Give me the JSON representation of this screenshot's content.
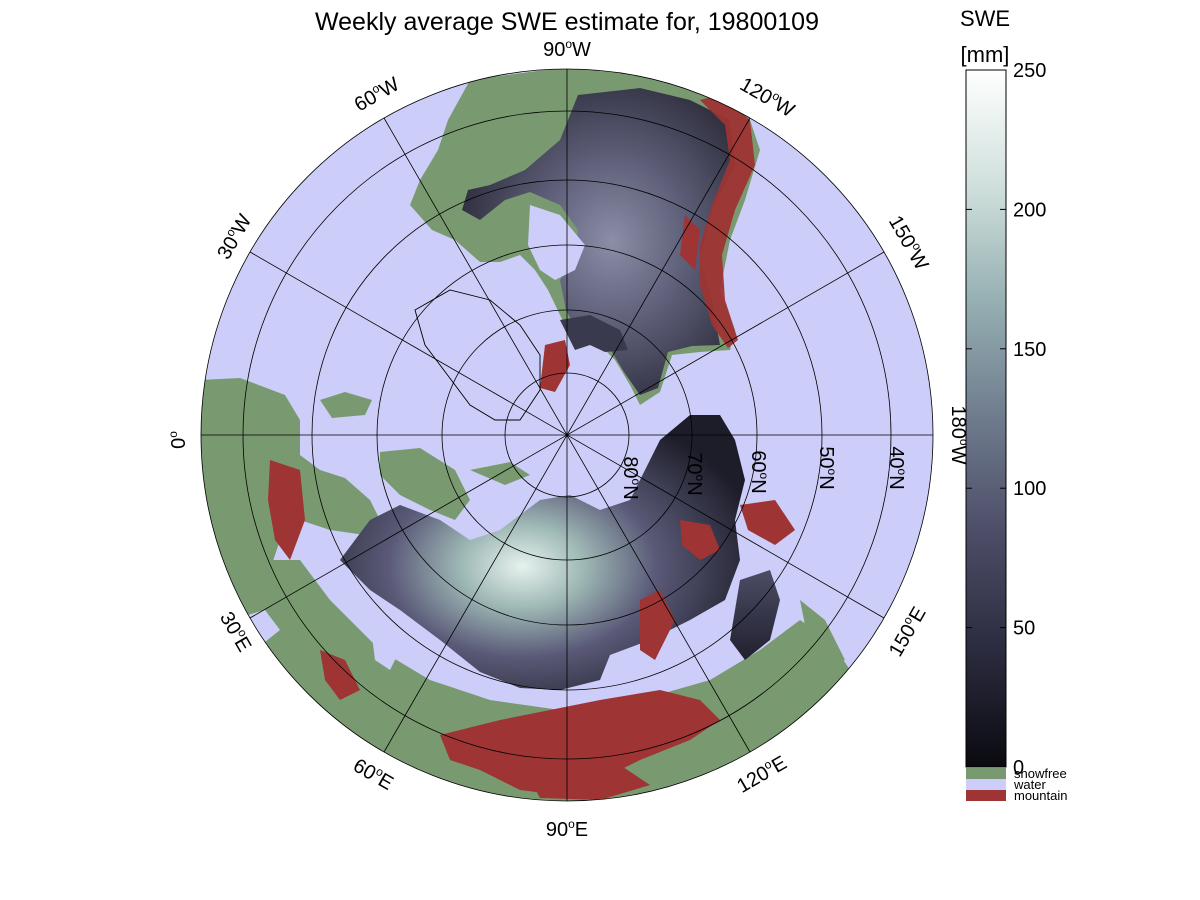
{
  "title": "Weekly average SWE estimate for, 19800109",
  "colorbar": {
    "title_line1": "SWE",
    "title_line2": "[mm]",
    "ticks": [
      "0",
      "50",
      "100",
      "150",
      "200",
      "250"
    ],
    "range": [
      0,
      250
    ],
    "gradient_stops": [
      "#0a0a10",
      "#2b2b3f",
      "#4c4c66",
      "#6e7b8d",
      "#95afb2",
      "#cfe0dc",
      "#ffffff"
    ]
  },
  "legend": [
    {
      "label": "snowfree",
      "color": "#799a70"
    },
    {
      "label": "water",
      "color": "#cdcdf9"
    },
    {
      "label": "mountain",
      "color": "#9e3434"
    }
  ],
  "map": {
    "projection": "north polar stereographic",
    "water_color": "#cdcdf9",
    "land_snowfree_color": "#799a70",
    "mountain_color": "#9e3434",
    "longitude_labels": [
      {
        "base": "90",
        "hemi": "W"
      },
      {
        "base": "120",
        "hemi": "W"
      },
      {
        "base": "150",
        "hemi": "W"
      },
      {
        "base": "180",
        "hemi": "W"
      },
      {
        "base": "150",
        "hemi": "E"
      },
      {
        "base": "120",
        "hemi": "E"
      },
      {
        "base": "90",
        "hemi": "E"
      },
      {
        "base": "60",
        "hemi": "E"
      },
      {
        "base": "30",
        "hemi": "E"
      },
      {
        "base": "0",
        "hemi": ""
      },
      {
        "base": "30",
        "hemi": "W"
      },
      {
        "base": "60",
        "hemi": "W"
      }
    ],
    "latitude_labels": [
      {
        "base": "80",
        "hemi": "N"
      },
      {
        "base": "70",
        "hemi": "N"
      },
      {
        "base": "60",
        "hemi": "N"
      },
      {
        "base": "50",
        "hemi": "N"
      },
      {
        "base": "40",
        "hemi": "N"
      }
    ]
  }
}
